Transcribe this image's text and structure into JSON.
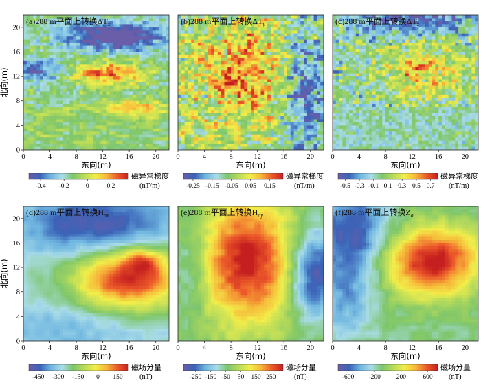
{
  "chart_data": [
    {
      "type": "heatmap",
      "panel": "a",
      "title_prefix": "(a)288 m平面上转换ΔT",
      "title_sub": "x",
      "xlabel": "东向(m)",
      "ylabel": "北向(m)",
      "x_ticks": [
        "0",
        "4",
        "8",
        "12",
        "16",
        "20"
      ],
      "y_ticks": [
        "0",
        "4",
        "8",
        "12",
        "16",
        "20"
      ],
      "xlim": [
        0,
        22
      ],
      "ylim": [
        0,
        22
      ],
      "colorbar": {
        "ticks": [
          "-0.4",
          "-0.2",
          "0",
          "0.2"
        ],
        "range": [
          -0.5,
          0.35
        ],
        "tick_values": [
          -0.4,
          -0.2,
          0,
          0.2
        ],
        "label": "磁异常梯度",
        "unit": "(nT/m)"
      }
    },
    {
      "type": "heatmap",
      "panel": "b",
      "title_prefix": "(b)288 m平面上转换ΔT",
      "title_sub": "y",
      "xlabel": "东向(m)",
      "ylabel": "",
      "x_ticks": [
        "0",
        "4",
        "8",
        "12",
        "16",
        "20"
      ],
      "y_ticks": [],
      "xlim": [
        0,
        22
      ],
      "ylim": [
        0,
        22
      ],
      "colorbar": {
        "ticks": [
          "-0.25",
          "-0.15",
          "-0.05",
          "0.05",
          "0.15"
        ],
        "range": [
          -0.3,
          0.22
        ],
        "tick_values": [
          -0.25,
          -0.15,
          -0.05,
          0.05,
          0.15
        ],
        "label": "磁异常梯度",
        "unit": "(nT/m)"
      }
    },
    {
      "type": "heatmap",
      "panel": "c",
      "title_prefix": "(c)288 m平面上转换ΔT",
      "title_sub": "z",
      "xlabel": "东向(m)",
      "ylabel": "",
      "x_ticks": [
        "0",
        "4",
        "8",
        "12",
        "16",
        "20"
      ],
      "y_ticks": [],
      "xlim": [
        0,
        22
      ],
      "ylim": [
        0,
        22
      ],
      "colorbar": {
        "ticks": [
          "-0.5",
          "-0.3",
          "-0.1",
          "0.1",
          "0.3",
          "0.5",
          "0.7"
        ],
        "range": [
          -0.6,
          0.8
        ],
        "tick_values": [
          -0.5,
          -0.3,
          -0.1,
          0.1,
          0.3,
          0.5,
          0.7
        ],
        "label": "磁异常梯度",
        "unit": "(nT/m)"
      }
    },
    {
      "type": "heatmap",
      "panel": "d",
      "title_prefix": "(d)288 m平面上转换H",
      "title_sub": "ax",
      "xlabel": "东向(m)",
      "ylabel": "北向(m)",
      "x_ticks": [
        "0",
        "4",
        "8",
        "12",
        "16",
        "20"
      ],
      "y_ticks": [
        "0",
        "4",
        "8",
        "12",
        "16",
        "20"
      ],
      "xlim": [
        0,
        22
      ],
      "ylim": [
        0,
        22
      ],
      "colorbar": {
        "ticks": [
          "-450",
          "-300",
          "-150",
          "0",
          "150"
        ],
        "range": [
          -520,
          230
        ],
        "tick_values": [
          -450,
          -300,
          -150,
          0,
          150
        ],
        "label": "磁场分量",
        "unit": "(nT)"
      }
    },
    {
      "type": "heatmap",
      "panel": "e",
      "title_prefix": "(e)288 m平面上转换H",
      "title_sub": "ay",
      "xlabel": "东向(m)",
      "ylabel": "",
      "x_ticks": [
        "0",
        "4",
        "8",
        "12",
        "16",
        "20"
      ],
      "y_ticks": [],
      "xlim": [
        0,
        22
      ],
      "ylim": [
        0,
        22
      ],
      "colorbar": {
        "ticks": [
          "-250",
          "-150",
          "-50",
          "50",
          "150",
          "250"
        ],
        "range": [
          -330,
          330
        ],
        "tick_values": [
          -250,
          -150,
          -50,
          50,
          150,
          250
        ],
        "label": "磁场分量",
        "unit": "(nT)"
      }
    },
    {
      "type": "heatmap",
      "panel": "f",
      "title_prefix": "(f)288 m平面上转换Z",
      "title_sub": "a",
      "xlabel": "东向(m)",
      "ylabel": "",
      "x_ticks": [
        "0",
        "4",
        "8",
        "12",
        "16",
        "20"
      ],
      "y_ticks": [],
      "xlim": [
        0,
        22
      ],
      "ylim": [
        0,
        22
      ],
      "colorbar": {
        "ticks": [
          "-600",
          "-200",
          "200",
          "600"
        ],
        "range": [
          -750,
          750
        ],
        "tick_values": [
          -600,
          -200,
          200,
          600
        ],
        "label": "磁场分量",
        "unit": "(nT)"
      }
    }
  ],
  "colormap": [
    "#6b5ea8",
    "#3a63b8",
    "#6fb6e0",
    "#a9dce8",
    "#7ec66a",
    "#b9dc5a",
    "#f2ee4a",
    "#f6b83a",
    "#ec5a2a",
    "#c51f1f"
  ]
}
